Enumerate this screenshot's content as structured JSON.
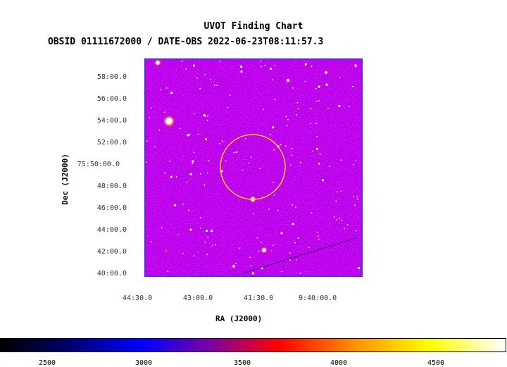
{
  "chart": {
    "title": "UVOT Finding Chart",
    "subtitle": "OBSID 01111672000 / DATE-OBS 2022-06-23T08:11:57.3",
    "xlabel": "RA (J2000)",
    "ylabel": "Dec (J2000)",
    "xticks": [
      "44:30.0",
      "43:00.0",
      "41:30.0",
      "9:40:00.0"
    ],
    "yticks": [
      "58:00.0",
      "56:00.0",
      "54:00.0",
      "52:00.0",
      "75:50:00.0",
      "48:00.0",
      "46:00.0",
      "44:00.0",
      "42:00.0",
      "40:00.0"
    ],
    "colorbar_ticks": [
      "2500",
      "3000",
      "3500",
      "4000",
      "4500"
    ],
    "colors": {
      "circle": "#ffcc00",
      "frame": "#3030ff"
    }
  }
}
